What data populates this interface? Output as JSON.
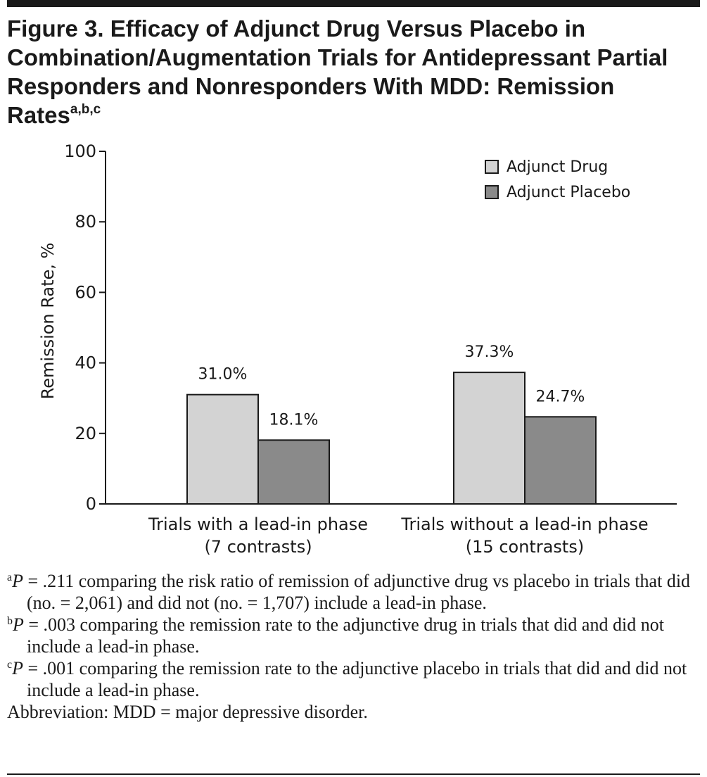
{
  "figure": {
    "title": "Figure 3. Efficacy of Adjunct Drug Versus Placebo in Combination/Augmentation Trials for Antidepressant Partial Responders and Nonresponders With MDD: Remission Rates",
    "title_superscript": "a,b,c"
  },
  "chart_data": {
    "type": "bar",
    "categories": [
      [
        "Trials with a lead-in phase",
        "(7 contrasts)"
      ],
      [
        "Trials without a lead-in phase",
        "(15 contrasts)"
      ]
    ],
    "series": [
      {
        "name": "Adjunct Drug",
        "values": [
          31.0,
          37.3
        ],
        "labels": [
          "31.0%",
          "37.3%"
        ],
        "color": "#d3d3d3"
      },
      {
        "name": "Adjunct Placebo",
        "values": [
          18.1,
          24.7
        ],
        "labels": [
          "18.1%",
          "24.7%"
        ],
        "color": "#8a8a8a"
      }
    ],
    "ylabel": "Remission Rate, %",
    "xlabel": "",
    "ylim": [
      0,
      100
    ],
    "yticks": [
      0,
      20,
      40,
      60,
      80,
      100
    ],
    "grid": false,
    "legend": "top-right"
  },
  "footnotes": [
    {
      "mark": "a",
      "p": "P",
      "text": " = .211 comparing the risk ratio of remission of adjunctive drug vs placebo in trials that did (no. = 2,061) and did not (no. = 1,707) include a lead-in phase."
    },
    {
      "mark": "b",
      "p": "P",
      "text": " = .003 comparing the remission rate to the adjunctive drug in trials that did and did not include a lead-in phase."
    },
    {
      "mark": "c",
      "p": "P",
      "text": " = .001 comparing the remission rate to the adjunctive placebo in trials that did and did not include a lead-in phase."
    }
  ],
  "abbreviation": "Abbreviation: MDD = major depressive disorder."
}
